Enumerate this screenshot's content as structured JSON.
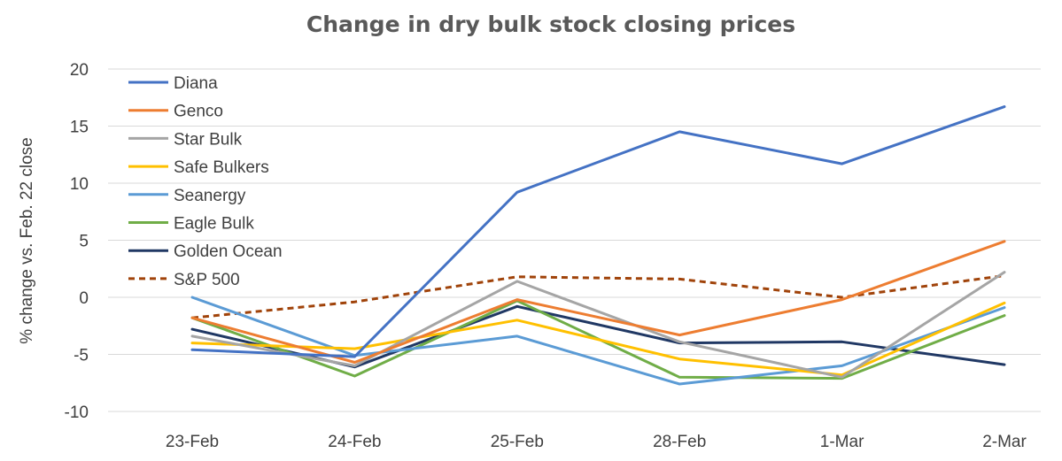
{
  "chart_data": {
    "type": "line",
    "title": "Change in dry bulk stock closing prices",
    "xlabel": "",
    "ylabel": "% change vs. Feb. 22 close",
    "categories": [
      "23-Feb",
      "24-Feb",
      "25-Feb",
      "28-Feb",
      "1-Mar",
      "2-Mar"
    ],
    "ylim": [
      -10,
      20
    ],
    "yticks": [
      -10,
      -5,
      0,
      5,
      10,
      15,
      20
    ],
    "grid": true,
    "legend_position": "top-left",
    "series": [
      {
        "name": "Diana",
        "color": "#4472c4",
        "dash": false,
        "values": [
          -4.6,
          -5.2,
          9.2,
          14.5,
          11.7,
          16.7
        ]
      },
      {
        "name": "Genco",
        "color": "#ed7d31",
        "dash": false,
        "values": [
          -1.8,
          -5.7,
          -0.2,
          -3.3,
          -0.2,
          4.9
        ]
      },
      {
        "name": "Star Bulk",
        "color": "#a5a5a5",
        "dash": false,
        "values": [
          -3.4,
          -6.0,
          1.4,
          -3.9,
          -7.0,
          2.2
        ]
      },
      {
        "name": "Safe Bulkers",
        "color": "#ffc000",
        "dash": false,
        "values": [
          -4.0,
          -4.5,
          -2.0,
          -5.4,
          -6.8,
          -0.5
        ]
      },
      {
        "name": "Seanergy",
        "color": "#5b9bd5",
        "dash": false,
        "values": [
          0.0,
          -5.1,
          -3.4,
          -7.6,
          -6.0,
          -0.9
        ]
      },
      {
        "name": "Eagle Bulk",
        "color": "#70ad47",
        "dash": false,
        "values": [
          -1.8,
          -6.9,
          -0.3,
          -7.0,
          -7.1,
          -1.6
        ]
      },
      {
        "name": "Golden Ocean",
        "color": "#203864",
        "dash": false,
        "values": [
          -2.8,
          -6.1,
          -0.8,
          -4.0,
          -3.9,
          -5.9
        ]
      },
      {
        "name": "S&P 500",
        "color": "#a0430a",
        "dash": true,
        "values": [
          -1.8,
          -0.4,
          1.8,
          1.6,
          0.0,
          1.9
        ]
      }
    ]
  }
}
